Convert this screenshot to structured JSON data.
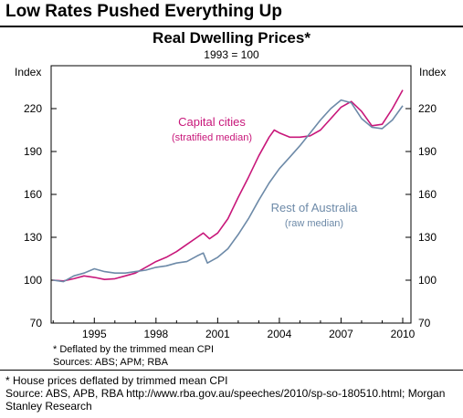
{
  "header": {
    "title": "Low Rates Pushed Everything Up"
  },
  "chart_data": {
    "type": "line",
    "title": "Real Dwelling Prices*",
    "subtitle": "1993 = 100",
    "ylabel_left": "Index",
    "ylabel_right": "Index",
    "ylim": [
      70,
      250
    ],
    "yticks": [
      70,
      100,
      130,
      160,
      190,
      220
    ],
    "xlim": [
      1992.9,
      2010.4
    ],
    "xticks": [
      1995,
      1998,
      2001,
      2004,
      2007,
      2010
    ],
    "grid": false,
    "series": [
      {
        "name": "Capital cities",
        "annotation": "(stratified median)",
        "color": "#c8177a",
        "x": [
          1993.0,
          1993.5,
          1994.0,
          1994.5,
          1995.0,
          1995.5,
          1996.0,
          1996.5,
          1997.0,
          1997.5,
          1998.0,
          1998.5,
          1999.0,
          1999.5,
          2000.0,
          2000.3,
          2000.6,
          2001.0,
          2001.5,
          2002.0,
          2002.5,
          2003.0,
          2003.5,
          2003.75,
          2004.0,
          2004.5,
          2005.0,
          2005.5,
          2006.0,
          2006.5,
          2007.0,
          2007.5,
          2008.0,
          2008.5,
          2009.0,
          2009.5,
          2010.0
        ],
        "values": [
          100,
          99.5,
          101,
          103,
          102,
          100.5,
          101,
          103,
          105,
          109,
          113,
          116,
          120,
          125,
          130,
          133,
          129,
          133,
          143,
          158,
          172,
          187,
          200,
          205,
          203,
          200,
          200,
          201,
          205,
          213,
          221,
          225,
          218,
          208,
          209,
          220,
          233
        ]
      },
      {
        "name": "Rest of Australia",
        "annotation": "(raw median)",
        "color": "#6d8aa8",
        "x": [
          1993.0,
          1993.5,
          1994.0,
          1994.5,
          1995.0,
          1995.5,
          1996.0,
          1996.5,
          1997.0,
          1997.5,
          1998.0,
          1998.5,
          1999.0,
          1999.5,
          2000.0,
          2000.3,
          2000.5,
          2001.0,
          2001.5,
          2002.0,
          2002.5,
          2003.0,
          2003.5,
          2004.0,
          2004.5,
          2005.0,
          2005.5,
          2006.0,
          2006.5,
          2007.0,
          2007.5,
          2008.0,
          2008.5,
          2009.0,
          2009.5,
          2010.0
        ],
        "values": [
          100,
          99,
          103,
          105,
          108,
          106,
          105,
          105,
          106,
          107,
          109,
          110,
          112,
          113,
          117,
          119,
          112,
          116,
          122,
          132,
          143,
          156,
          168,
          178,
          186,
          194,
          203,
          212,
          220,
          226,
          224,
          213,
          207,
          206,
          212,
          222
        ]
      }
    ],
    "notes": [
      "*   Deflated by the trimmed mean CPI",
      "Sources: ABS; APM; RBA"
    ]
  },
  "footer": {
    "lines": [
      "* House prices deflated by trimmed mean CPI",
      "Source: ABS, APB, RBA http://www.rba.gov.au/speeches/2010/sp-so-180510.html; Morgan",
      "Stanley Research"
    ]
  }
}
